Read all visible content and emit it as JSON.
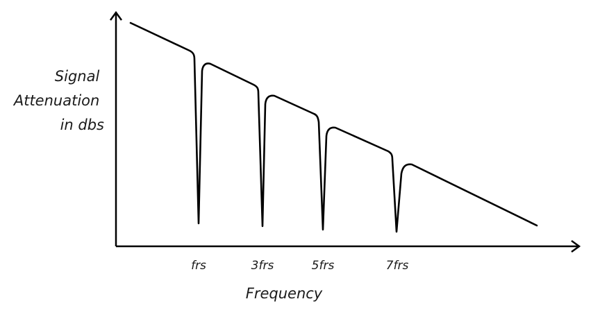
{
  "chart_data": {
    "type": "line",
    "title": "",
    "ylabel_lines": [
      "Signal",
      "Attenuation",
      "in dbs"
    ],
    "xlabel": "Frequency",
    "x_ticks": [
      "frs",
      "3frs",
      "5frs",
      "7frs"
    ],
    "stroke_color": "#000000",
    "background": "#ffffff",
    "description_curve": "attenuation decreasing with frequency, sharp notches at odd multiples of frs"
  }
}
